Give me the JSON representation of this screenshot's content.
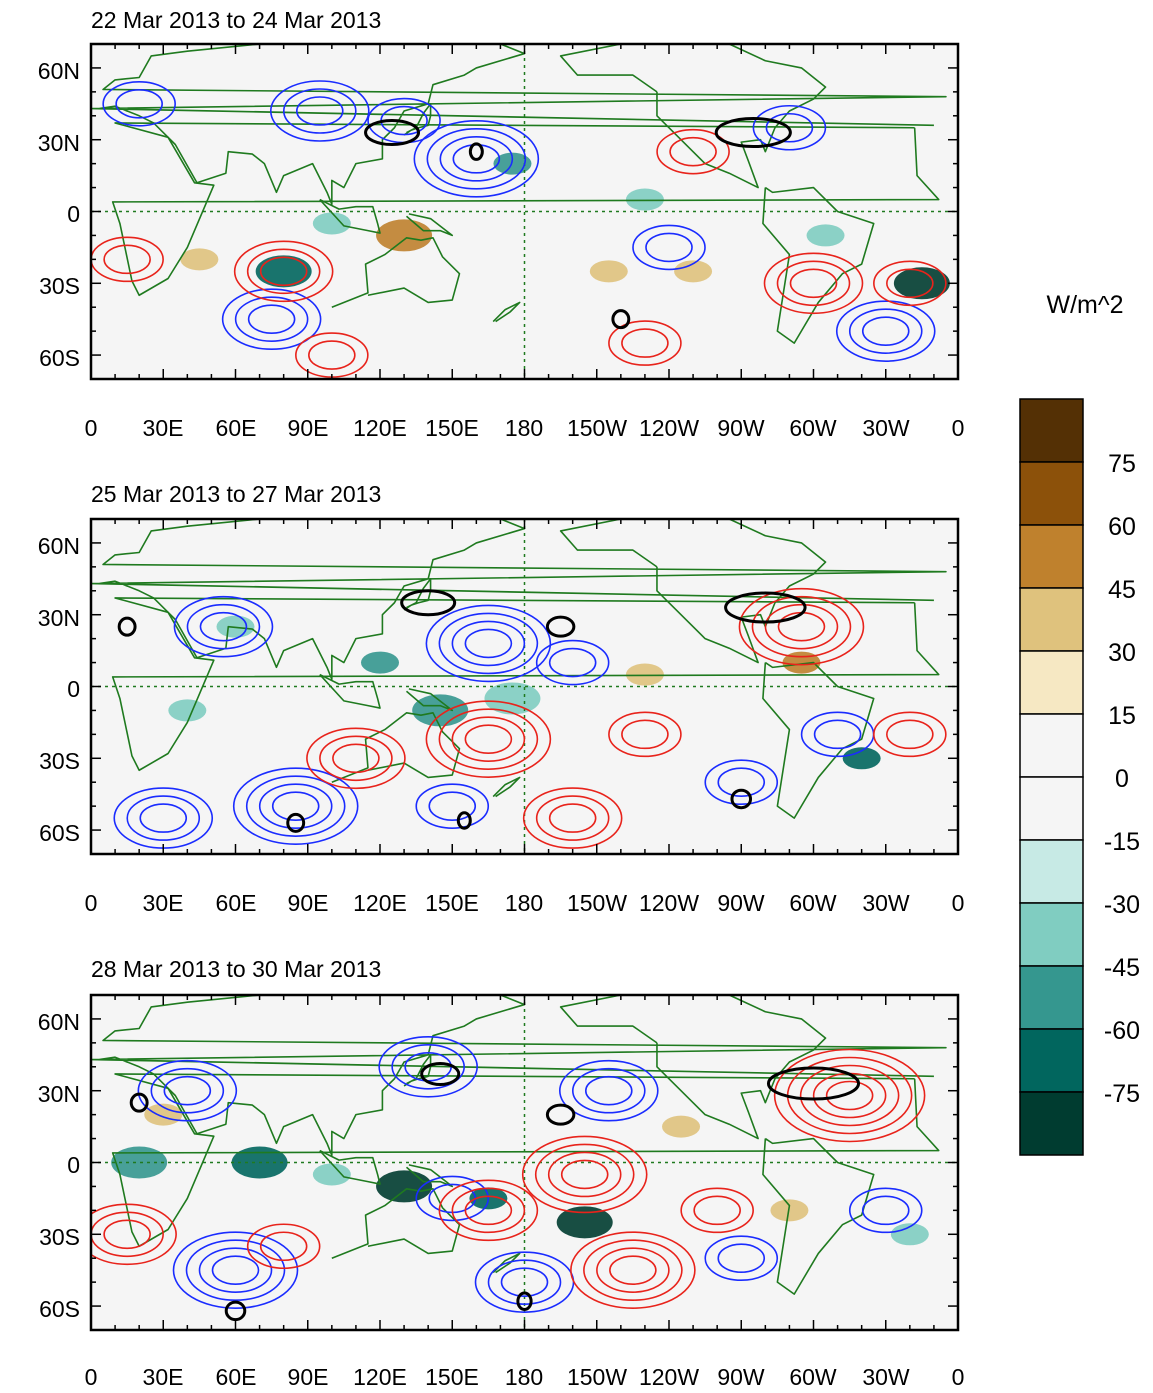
{
  "figure": {
    "units_label": "W/m^2",
    "colorbar": {
      "labels": [
        "75",
        "60",
        "45",
        "30",
        "15",
        "0",
        "-15",
        "-30",
        "-45",
        "-60",
        "-75"
      ],
      "colors": [
        "#543005",
        "#8c510a",
        "#bf812d",
        "#dfc27d",
        "#f6e8c3",
        "#f5f5f5",
        "#f5f5f5",
        "#c7eae5",
        "#80cdc1",
        "#35978f",
        "#01665e",
        "#003c30"
      ]
    },
    "lon_labels": [
      "0",
      "30E",
      "60E",
      "90E",
      "120E",
      "150E",
      "180",
      "150W",
      "120W",
      "90W",
      "60W",
      "30W",
      "0"
    ],
    "lat_labels": [
      "60N",
      "30N",
      "0",
      "30S",
      "60S"
    ],
    "contour_colors": {
      "positive": "#e8231b",
      "negative": "#1a2cff",
      "significance": "#000000",
      "coastline": "#1f7a1f"
    }
  },
  "panels": [
    {
      "title": "22 Mar 2013 to 24 Mar 2013",
      "neg_centers": [
        [
          160,
          22,
          4
        ],
        [
          20,
          45,
          2
        ],
        [
          95,
          42,
          3
        ],
        [
          75,
          -45,
          3
        ],
        [
          240,
          -15,
          2
        ],
        [
          330,
          -50,
          3
        ],
        [
          290,
          35,
          2
        ],
        [
          130,
          38,
          2
        ]
      ],
      "pos_centers": [
        [
          80,
          -25,
          3
        ],
        [
          15,
          -20,
          2
        ],
        [
          300,
          -30,
          3
        ],
        [
          230,
          -55,
          2
        ],
        [
          250,
          25,
          2
        ],
        [
          340,
          -30,
          2
        ],
        [
          100,
          -60,
          2
        ]
      ],
      "sig_centers": [
        [
          125,
          33,
          20
        ],
        [
          160,
          25,
          3
        ],
        [
          275,
          33,
          28
        ],
        [
          220,
          -45,
          6
        ]
      ],
      "shade": [
        [
          130,
          -10,
          2,
          "#bf812d"
        ],
        [
          45,
          -20,
          1,
          "#dfc27d"
        ],
        [
          80,
          -25,
          2,
          "#01665e"
        ],
        [
          345,
          -30,
          2,
          "#003c30"
        ],
        [
          215,
          -25,
          1,
          "#dfc27d"
        ],
        [
          175,
          20,
          1,
          "#35978f"
        ],
        [
          305,
          -10,
          1,
          "#80cdc1"
        ],
        [
          100,
          -5,
          1,
          "#80cdc1"
        ],
        [
          250,
          -25,
          1,
          "#dfc27d"
        ],
        [
          230,
          5,
          1,
          "#80cdc1"
        ]
      ]
    },
    {
      "title": "25 Mar 2013 to 27 Mar 2013",
      "neg_centers": [
        [
          165,
          18,
          4
        ],
        [
          55,
          25,
          3
        ],
        [
          30,
          -55,
          3
        ],
        [
          85,
          -50,
          4
        ],
        [
          200,
          10,
          2
        ],
        [
          310,
          -20,
          2
        ],
        [
          270,
          -40,
          2
        ],
        [
          150,
          -50,
          2
        ]
      ],
      "pos_centers": [
        [
          165,
          -22,
          4
        ],
        [
          295,
          25,
          4
        ],
        [
          110,
          -30,
          3
        ],
        [
          230,
          -20,
          2
        ],
        [
          340,
          -20,
          2
        ],
        [
          200,
          -55,
          3
        ]
      ],
      "sig_centers": [
        [
          140,
          35,
          20
        ],
        [
          195,
          25,
          10
        ],
        [
          280,
          33,
          30
        ],
        [
          15,
          25,
          6
        ],
        [
          85,
          -57,
          6
        ],
        [
          270,
          -47,
          7
        ],
        [
          155,
          -56,
          3
        ]
      ],
      "shade": [
        [
          295,
          10,
          1,
          "#bf812d"
        ],
        [
          60,
          25,
          1,
          "#80cdc1"
        ],
        [
          145,
          -10,
          2,
          "#35978f"
        ],
        [
          230,
          5,
          1,
          "#dfc27d"
        ],
        [
          320,
          -30,
          1,
          "#01665e"
        ],
        [
          175,
          -5,
          2,
          "#80cdc1"
        ],
        [
          120,
          10,
          1,
          "#35978f"
        ],
        [
          40,
          -10,
          1,
          "#80cdc1"
        ]
      ]
    },
    {
      "title": "28 Mar 2013 to 30 Mar 2013",
      "neg_centers": [
        [
          40,
          30,
          3
        ],
        [
          140,
          40,
          3
        ],
        [
          215,
          30,
          3
        ],
        [
          60,
          -45,
          4
        ],
        [
          150,
          -15,
          2
        ],
        [
          180,
          -50,
          3
        ],
        [
          330,
          -20,
          2
        ],
        [
          270,
          -40,
          2
        ]
      ],
      "pos_centers": [
        [
          315,
          28,
          5
        ],
        [
          205,
          -5,
          4
        ],
        [
          225,
          -45,
          4
        ],
        [
          165,
          -20,
          3
        ],
        [
          15,
          -30,
          3
        ],
        [
          260,
          -20,
          2
        ],
        [
          80,
          -35,
          2
        ]
      ],
      "sig_centers": [
        [
          145,
          37,
          14
        ],
        [
          195,
          20,
          10
        ],
        [
          300,
          33,
          34
        ],
        [
          20,
          25,
          6
        ],
        [
          60,
          -62,
          7
        ],
        [
          180,
          -58,
          5
        ]
      ],
      "shade": [
        [
          70,
          0,
          2,
          "#01665e"
        ],
        [
          130,
          -10,
          2,
          "#003c30"
        ],
        [
          205,
          -25,
          2,
          "#003c30"
        ],
        [
          165,
          -15,
          1,
          "#01665e"
        ],
        [
          30,
          20,
          1,
          "#dfc27d"
        ],
        [
          245,
          15,
          1,
          "#dfc27d"
        ],
        [
          20,
          0,
          2,
          "#35978f"
        ],
        [
          100,
          -5,
          1,
          "#80cdc1"
        ],
        [
          290,
          -20,
          1,
          "#dfc27d"
        ],
        [
          340,
          -30,
          1,
          "#80cdc1"
        ]
      ]
    }
  ]
}
